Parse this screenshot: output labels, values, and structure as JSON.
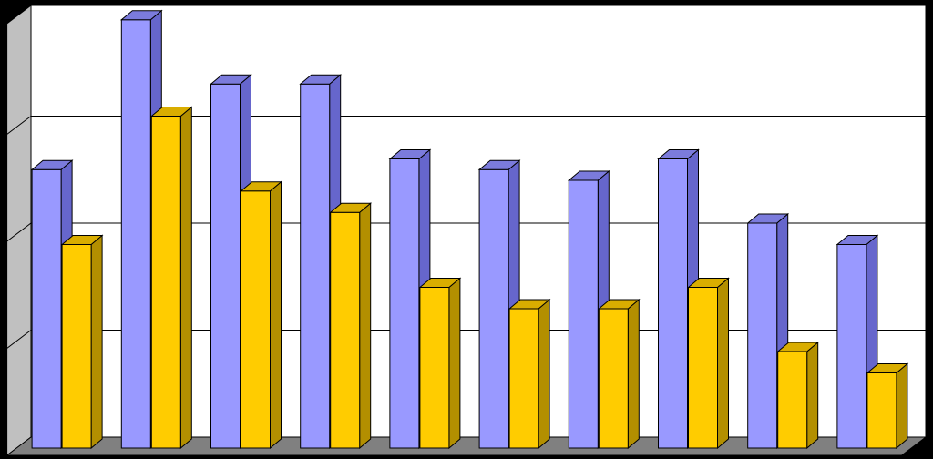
{
  "chart_data": {
    "type": "bar",
    "style": "3d-clustered-column",
    "title": "",
    "xlabel": "",
    "ylabel": "",
    "grid": true,
    "legend": "none",
    "categories": [
      "",
      "",
      "",
      "",
      "",
      "",
      "",
      "",
      "",
      ""
    ],
    "ylim": [
      0,
      4
    ],
    "series": [
      {
        "values": [
          2.5,
          3.9,
          3.3,
          3.3,
          2.6,
          2.5,
          2.4,
          2.6,
          2.0,
          1.8
        ],
        "color": "#9999ff",
        "side_color": "#6666cc",
        "top_color": "#7b7bdc"
      },
      {
        "values": [
          1.8,
          3.0,
          2.3,
          2.1,
          1.4,
          1.2,
          1.2,
          1.4,
          0.8,
          0.6
        ],
        "color": "#ffcc00",
        "side_color": "#b38f00",
        "top_color": "#d9ad00"
      }
    ],
    "colors": {
      "background": "#000000",
      "plot_back_wall": "#ffffff",
      "plot_side_wall": "#c0c0c0",
      "floor": "#808080",
      "gridline": "#000000",
      "outline": "#000000"
    }
  }
}
